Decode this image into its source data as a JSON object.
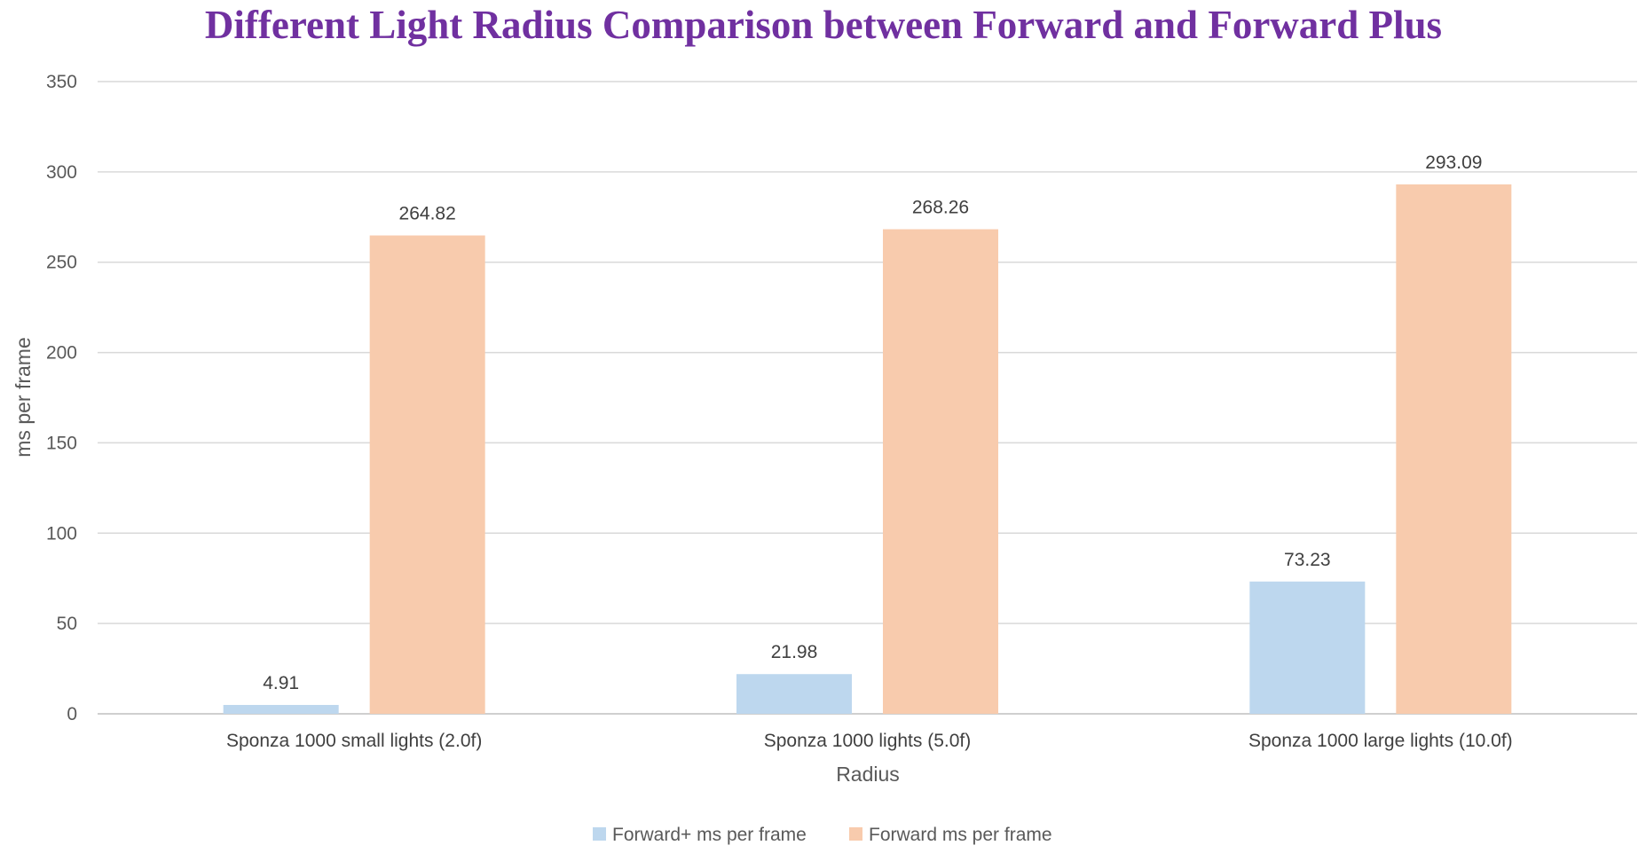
{
  "chart_data": {
    "type": "bar",
    "title": "Different Light Radius Comparison between Forward and Forward Plus",
    "xlabel": "Radius",
    "ylabel": "ms per frame",
    "ylim": [
      0,
      350
    ],
    "yticks": [
      0,
      50,
      100,
      150,
      200,
      250,
      300,
      350
    ],
    "categories": [
      "Sponza 1000 small lights (2.0f)",
      "Sponza 1000 lights (5.0f)",
      "Sponza 1000 large lights (10.0f)"
    ],
    "series": [
      {
        "name": "Forward+ ms per frame",
        "values": [
          4.91,
          21.98,
          73.23
        ],
        "color": "#bdd7ee"
      },
      {
        "name": "Forward ms per frame",
        "values": [
          264.82,
          268.26,
          293.09
        ],
        "color": "#f8cbad"
      }
    ],
    "data_labels": true,
    "grid": "horizontal",
    "legend_position": "bottom",
    "title_color": "#7030a0"
  }
}
